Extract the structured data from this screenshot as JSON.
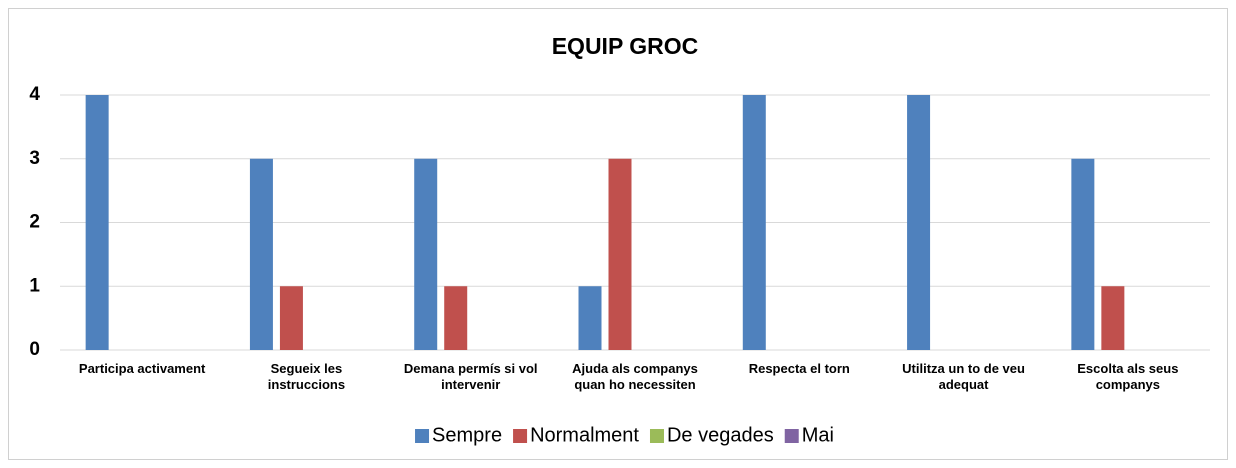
{
  "chart_data": {
    "type": "bar",
    "title": "EQUIP GROC",
    "categories": [
      "Participa activament",
      "Segueix les\ninstruccions",
      "Demana permís si vol\nintervenir",
      "Ajuda als companys\nquan ho necessiten",
      "Respecta el torn",
      "Utilitza un to de veu\nadequat",
      "Escolta als seus\ncompanys"
    ],
    "series": [
      {
        "name": "Sempre",
        "color": "#4f81bd",
        "values": [
          4,
          3,
          3,
          1,
          4,
          4,
          3
        ]
      },
      {
        "name": "Normalment",
        "color": "#c0504d",
        "values": [
          0,
          1,
          1,
          3,
          0,
          0,
          1
        ]
      },
      {
        "name": "De vegades",
        "color": "#9bbb59",
        "values": [
          0,
          0,
          0,
          0,
          0,
          0,
          0
        ]
      },
      {
        "name": "Mai",
        "color": "#8064a2",
        "values": [
          0,
          0,
          0,
          0,
          0,
          0,
          0
        ]
      }
    ],
    "ylim": [
      0,
      4
    ],
    "yticks": [
      0,
      1,
      2,
      3,
      4
    ],
    "grid": true,
    "legend": "bottom"
  }
}
